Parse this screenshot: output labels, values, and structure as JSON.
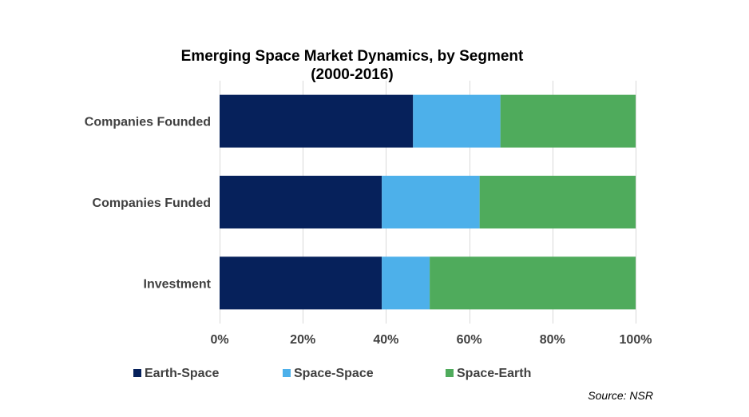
{
  "chart_data": {
    "type": "bar",
    "orientation": "horizontal",
    "stacked": "percent",
    "title": "Emerging Space Market Dynamics, by Segment",
    "subtitle": "(2000-2016)",
    "categories": [
      "Companies Founded",
      "Companies Funded",
      "Investment"
    ],
    "series": [
      {
        "name": "Earth-Space",
        "color": "#06215b",
        "values": [
          46.5,
          39,
          39
        ]
      },
      {
        "name": "Space-Space",
        "color": "#4db0ea",
        "values": [
          21,
          23.5,
          11.5
        ]
      },
      {
        "name": "Space-Earth",
        "color": "#4fab5c",
        "values": [
          32.5,
          37.5,
          49.5
        ]
      }
    ],
    "xlim": [
      0,
      100
    ],
    "xticks": [
      "0%",
      "20%",
      "40%",
      "60%",
      "80%",
      "100%"
    ],
    "xtick_values": [
      0,
      20,
      40,
      60,
      80,
      100
    ],
    "grid": true,
    "legend_position": "bottom",
    "source": "Source: NSR"
  }
}
